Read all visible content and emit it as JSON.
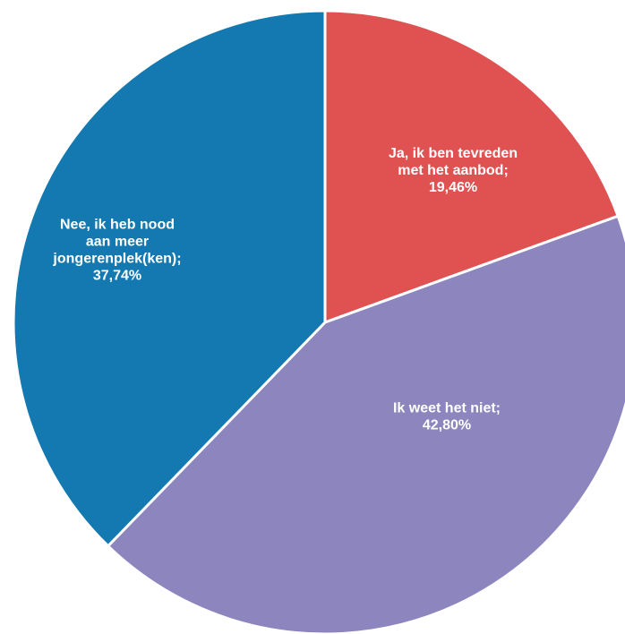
{
  "chart_data": {
    "type": "pie",
    "slices": [
      {
        "label_lines": [
          "Ja, ik ben tevreden",
          "met het aanbod;",
          "19,46%"
        ],
        "value": 19.46,
        "color": "#E05252"
      },
      {
        "label_lines": [
          "Ik weet het niet;",
          "42,80%"
        ],
        "value": 42.8,
        "color": "#8C85BE"
      },
      {
        "label_lines": [
          "Nee, ik heb nood",
          "aan meer",
          "jongerenplek(ken);",
          "37,74%"
        ],
        "value": 37.74,
        "color": "#1479B0"
      }
    ],
    "start_angle": "12 o'clock",
    "direction": "clockwise",
    "legend": "none"
  }
}
